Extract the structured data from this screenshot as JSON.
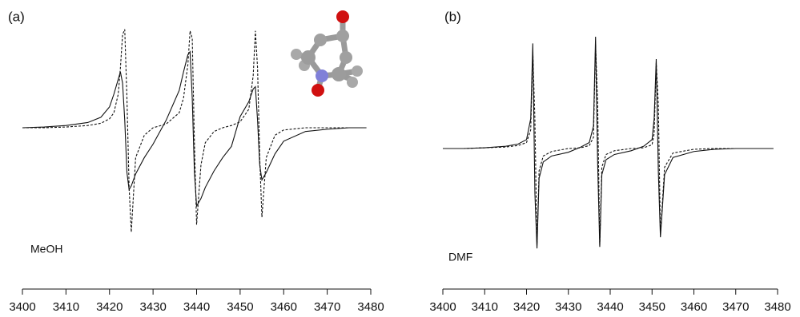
{
  "chart_data": [
    {
      "type": "line",
      "title": "(a)",
      "annotation": "MeOH",
      "x": [
        3400,
        3405,
        3410,
        3415,
        3418,
        3420,
        3421,
        3422,
        3422.5,
        3423,
        3423.5,
        3424,
        3424.5,
        3425,
        3426,
        3428,
        3430,
        3433,
        3436,
        3437,
        3438,
        3438.5,
        3439,
        3439.5,
        3440,
        3441,
        3442,
        3444,
        3446,
        3448,
        3450,
        3452,
        3453,
        3453.5,
        3454,
        3454.5,
        3455,
        3456,
        3458,
        3460,
        3465,
        3470,
        3475,
        3479
      ],
      "series": [
        {
          "style": "solid",
          "color": "#111111",
          "values": [
            0,
            1,
            3,
            7,
            14,
            28,
            45,
            65,
            75,
            60,
            10,
            -60,
            -83,
            -78,
            -62,
            -40,
            -22,
            10,
            50,
            75,
            98,
            102,
            40,
            -60,
            -105,
            -95,
            -80,
            -58,
            -40,
            -25,
            15,
            35,
            52,
            55,
            10,
            -50,
            -70,
            -60,
            -35,
            -18,
            -5,
            -2,
            0,
            0
          ]
        },
        {
          "style": "dashed",
          "color": "#111111",
          "values": [
            0,
            0,
            1,
            3,
            6,
            12,
            20,
            45,
            80,
            125,
            132,
            40,
            -80,
            -140,
            -40,
            -10,
            0,
            5,
            20,
            40,
            85,
            130,
            120,
            -20,
            -130,
            -50,
            -20,
            -5,
            0,
            3,
            8,
            25,
            70,
            130,
            80,
            -40,
            -120,
            -40,
            -10,
            -3,
            0,
            0,
            0,
            0
          ]
        }
      ],
      "xlim": [
        3400,
        3480
      ],
      "xticks": [
        3400,
        3410,
        3420,
        3430,
        3440,
        3450,
        3460,
        3470,
        3480
      ]
    },
    {
      "type": "line",
      "title": "(b)",
      "annotation": "DMF",
      "x": [
        3400,
        3405,
        3410,
        3415,
        3418,
        3420,
        3421,
        3421.5,
        3422,
        3422.5,
        3423,
        3424,
        3426,
        3430,
        3433,
        3435,
        3436,
        3436.5,
        3437,
        3437.5,
        3438,
        3439,
        3441,
        3445,
        3448,
        3450,
        3450.5,
        3451,
        3451.5,
        3452,
        3453,
        3455,
        3460,
        3465,
        3470,
        3475,
        3479
      ],
      "series": [
        {
          "style": "solid",
          "color": "#111111",
          "values": [
            0,
            0,
            1,
            3,
            6,
            12,
            40,
            141,
            -60,
            -134,
            -40,
            -18,
            -10,
            -5,
            2,
            8,
            30,
            150,
            -20,
            -132,
            -35,
            -15,
            -8,
            -3,
            3,
            12,
            40,
            120,
            -30,
            -119,
            -35,
            -12,
            -4,
            -1,
            0,
            0,
            0
          ]
        },
        {
          "style": "dashed",
          "color": "#111111",
          "values": [
            0,
            0,
            1,
            2,
            4,
            8,
            25,
            130,
            40,
            -130,
            -30,
            -10,
            -4,
            0,
            1,
            4,
            15,
            140,
            60,
            -130,
            -25,
            -8,
            -3,
            0,
            1,
            5,
            20,
            115,
            60,
            -115,
            -25,
            -6,
            -1,
            0,
            0,
            0,
            0
          ]
        }
      ],
      "xlim": [
        3400,
        3480
      ],
      "xticks": [
        3400,
        3410,
        3420,
        3430,
        3440,
        3450,
        3460,
        3470,
        3480
      ]
    }
  ]
}
